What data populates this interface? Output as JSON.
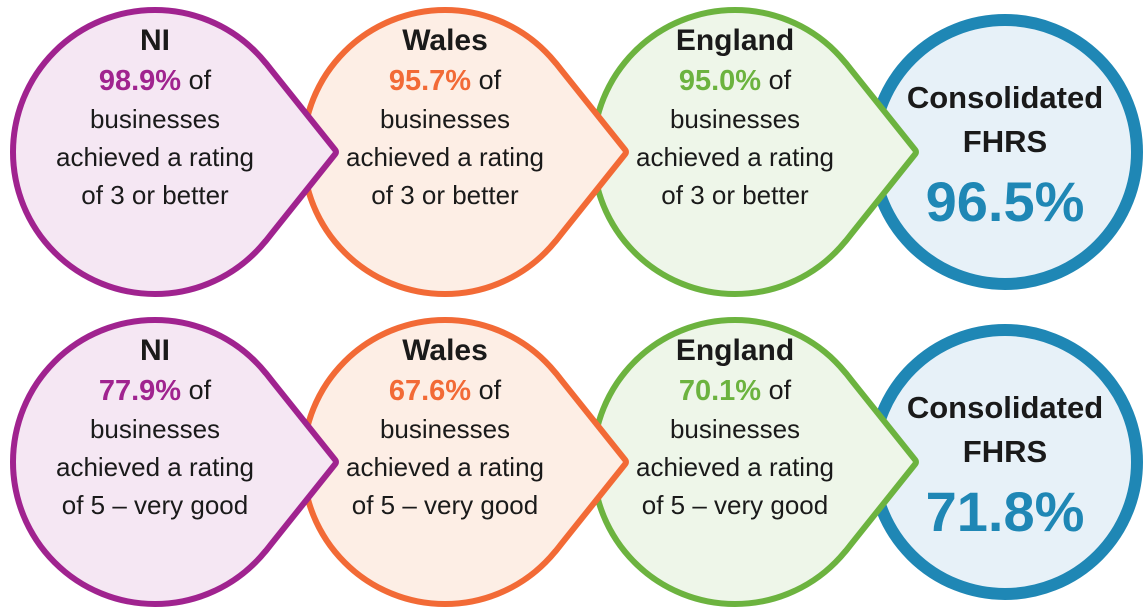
{
  "rows": [
    {
      "items": [
        {
          "name": "NI",
          "percent": "98.9%",
          "suffix": "of",
          "lines": [
            "businesses",
            "achieved a rating",
            "of 3 or better"
          ]
        },
        {
          "name": "Wales",
          "percent": "95.7%",
          "suffix": "of",
          "lines": [
            "businesses",
            "achieved a rating",
            "of 3 or better"
          ]
        },
        {
          "name": "England",
          "percent": "95.0%",
          "suffix": "of",
          "lines": [
            "businesses",
            "achieved a rating",
            "of 3 or better"
          ]
        }
      ],
      "total": {
        "name_lines": [
          "Consolidated",
          "FHRS"
        ],
        "percent": "96.5%"
      }
    },
    {
      "items": [
        {
          "name": "NI",
          "percent": "77.9%",
          "suffix": "of",
          "lines": [
            "businesses",
            "achieved a rating",
            "of 5 – very good"
          ]
        },
        {
          "name": "Wales",
          "percent": "67.6%",
          "suffix": "of",
          "lines": [
            "businesses",
            "achieved a rating",
            "of 5 – very good"
          ]
        },
        {
          "name": "England",
          "percent": "70.1%",
          "suffix": "of",
          "lines": [
            "businesses",
            "achieved a rating",
            "of 5 – very good"
          ]
        }
      ],
      "total": {
        "name_lines": [
          "Consolidated",
          "FHRS"
        ],
        "percent": "71.8%"
      }
    }
  ]
}
